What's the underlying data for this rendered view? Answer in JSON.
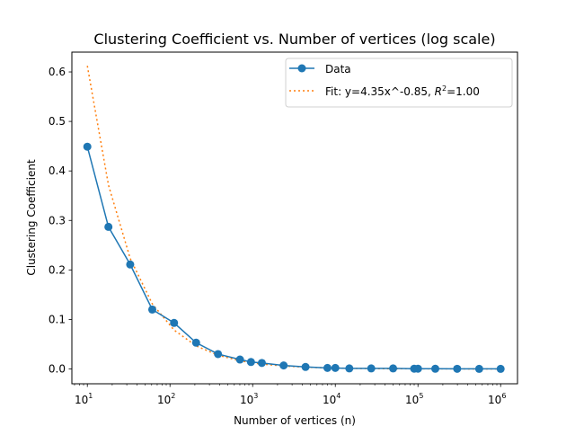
{
  "chart_data": {
    "type": "line",
    "title": "Clustering Coefficient vs. Number of vertices (log scale)",
    "xlabel": "Number of vertices (n)",
    "ylabel": "Clustering Coefficient",
    "xscale": "log",
    "xlim": [
      6.5,
      1600000
    ],
    "ylim": [
      -0.03,
      0.64
    ],
    "x_ticks": [
      {
        "value": 10,
        "base": "10",
        "exp": "1"
      },
      {
        "value": 100,
        "base": "10",
        "exp": "2"
      },
      {
        "value": 1000,
        "base": "10",
        "exp": "3"
      },
      {
        "value": 10000,
        "base": "10",
        "exp": "4"
      },
      {
        "value": 100000,
        "base": "10",
        "exp": "5"
      },
      {
        "value": 1000000,
        "base": "10",
        "exp": "6"
      }
    ],
    "y_ticks": [
      {
        "value": 0.0,
        "label": "0.0"
      },
      {
        "value": 0.1,
        "label": "0.1"
      },
      {
        "value": 0.2,
        "label": "0.2"
      },
      {
        "value": 0.3,
        "label": "0.3"
      },
      {
        "value": 0.4,
        "label": "0.4"
      },
      {
        "value": 0.5,
        "label": "0.5"
      },
      {
        "value": 0.6,
        "label": "0.6"
      }
    ],
    "grid": false,
    "legend_position": "top-right",
    "series": [
      {
        "name": "Data",
        "style": "solid-marker",
        "color": "#1f77b4",
        "x": [
          10,
          18,
          33,
          61,
          112,
          207,
          381,
          702,
          954,
          1292,
          2371,
          4363,
          8031,
          10000,
          14779,
          27198,
          50052,
          90000,
          100000,
          162000,
          298000,
          550000,
          1000000
        ],
        "y": [
          0.449,
          0.287,
          0.211,
          0.12,
          0.093,
          0.053,
          0.03,
          0.019,
          0.014,
          0.012,
          0.007,
          0.004,
          0.002,
          0.002,
          0.001,
          0.001,
          0.001,
          0.0005,
          0.0005,
          0.0003,
          0.0002,
          0.0001,
          0.0001
        ]
      },
      {
        "name": "Fit: y=4.35x^-0.85, R^2=1.00",
        "style": "dotted",
        "color": "#ff7f0e",
        "x": [
          10,
          18,
          33,
          61,
          112,
          207,
          381,
          702,
          954,
          1292,
          2371,
          4363,
          8031,
          10000,
          14779,
          27198,
          50052,
          90000,
          100000,
          162000,
          298000,
          550000,
          1000000
        ],
        "y": [
          0.6122,
          0.3717,
          0.2231,
          0.1316,
          0.0785,
          0.0465,
          0.0277,
          0.0165,
          0.0127,
          0.0098,
          0.0059,
          0.0035,
          0.0021,
          0.0017,
          0.0012,
          0.0007,
          0.0004,
          0.0003,
          0.0002,
          0.0001,
          0.0001,
          0.0,
          0.0
        ]
      }
    ],
    "legend": {
      "data_label": "Data",
      "fit_label_prefix": "Fit: y=4.35x^-0.85, ",
      "fit_label_r": "R",
      "fit_label_sup": "2",
      "fit_label_suffix": "=1.00"
    }
  }
}
